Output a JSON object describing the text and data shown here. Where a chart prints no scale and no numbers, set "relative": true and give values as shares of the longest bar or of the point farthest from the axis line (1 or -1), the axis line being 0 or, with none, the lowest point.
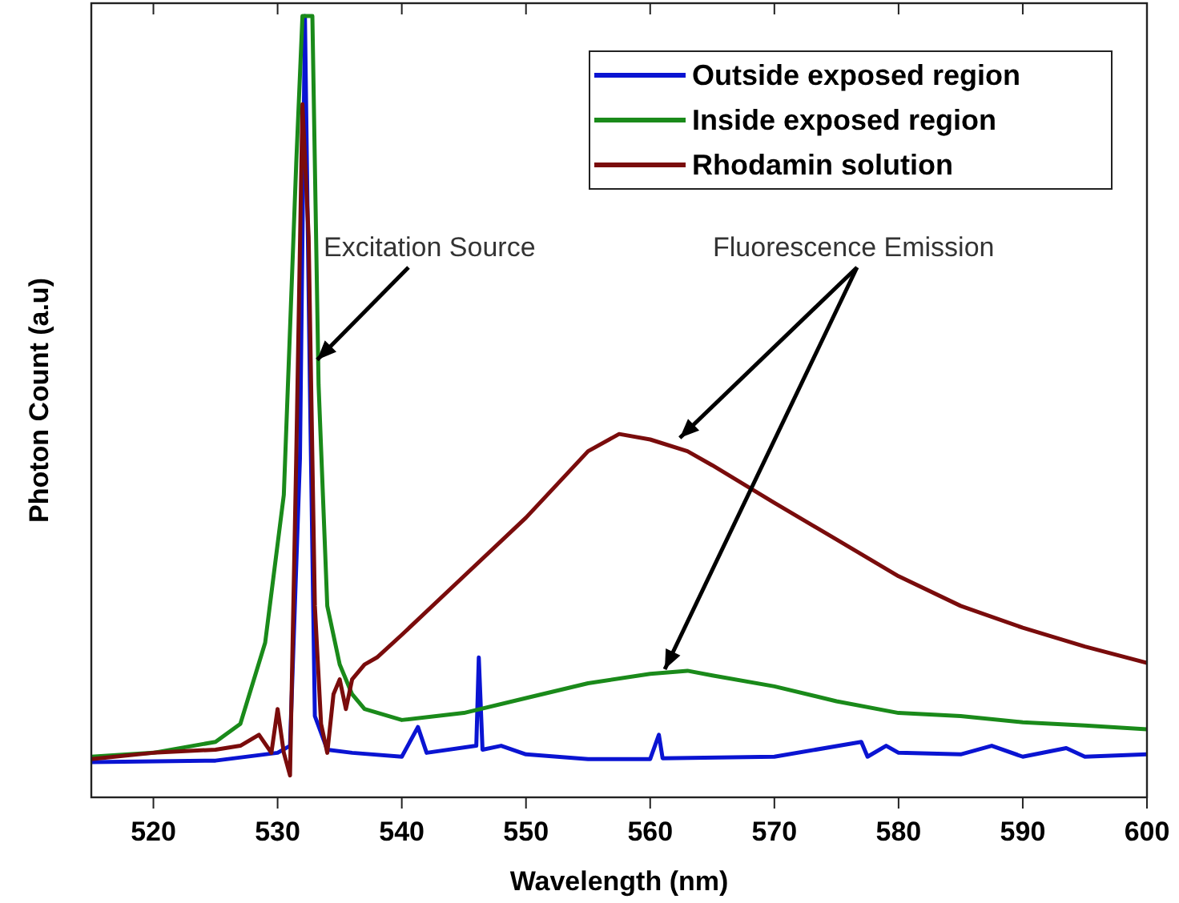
{
  "chart_data": {
    "type": "line",
    "relative": true,
    "xlabel": "Wavelength (nm)",
    "ylabel": "Photon Count (a.u)",
    "xlim": [
      515,
      600
    ],
    "xticks": [
      520,
      530,
      540,
      550,
      560,
      570,
      580,
      590,
      600
    ],
    "legend": "top right",
    "grid": false,
    "line_style": "solid",
    "annotations": [
      {
        "text": "Excitation Source",
        "x": 532.8,
        "y": 0.56
      },
      {
        "text": "Fluorescence Emission",
        "x": 562,
        "y": 0.46
      }
    ],
    "series": [
      {
        "name": "Outside exposed region",
        "color": "#0a14d2",
        "x": [
          515,
          525,
          530,
          531,
          531.8,
          532.2,
          532.6,
          533,
          534,
          536,
          540,
          541.3,
          542,
          546,
          546.2,
          546.5,
          548,
          550,
          555,
          560,
          560.7,
          561,
          570,
          577,
          577.5,
          579,
          580,
          585,
          587.5,
          590,
          593.5,
          595,
          600
        ],
        "values": [
          0.045,
          0.047,
          0.057,
          0.066,
          0.434,
          1,
          0.528,
          0.104,
          0.061,
          0.057,
          0.052,
          0.09,
          0.057,
          0.066,
          0.179,
          0.061,
          0.066,
          0.055,
          0.049,
          0.049,
          0.08,
          0.05,
          0.052,
          0.071,
          0.052,
          0.066,
          0.057,
          0.055,
          0.066,
          0.052,
          0.063,
          0.052,
          0.055
        ]
      },
      {
        "name": "Inside exposed region",
        "color": "#1a8a1a",
        "x": [
          515,
          520,
          525,
          527,
          529,
          530.5,
          531.5,
          532,
          532.8,
          533.3,
          534,
          535,
          536,
          537,
          540,
          545,
          550,
          555,
          560,
          563,
          565,
          570,
          575,
          580,
          585,
          590,
          595,
          600
        ],
        "values": [
          0.052,
          0.057,
          0.071,
          0.094,
          0.198,
          0.387,
          0.811,
          1,
          1,
          0.528,
          0.245,
          0.17,
          0.132,
          0.113,
          0.099,
          0.108,
          0.127,
          0.146,
          0.158,
          0.162,
          0.156,
          0.142,
          0.123,
          0.108,
          0.104,
          0.096,
          0.092,
          0.087
        ]
      },
      {
        "name": "Rhodamin solution",
        "color": "#7a0c0c",
        "x": [
          515,
          520,
          525,
          527,
          528.5,
          529.5,
          530,
          530.5,
          531,
          531.5,
          532,
          532.5,
          533,
          533.5,
          534,
          534.5,
          535,
          535.5,
          536,
          537,
          538,
          540,
          545,
          550,
          555,
          557.5,
          560,
          563,
          565,
          570,
          575,
          580,
          585,
          590,
          595,
          600
        ],
        "values": [
          0.049,
          0.057,
          0.061,
          0.066,
          0.08,
          0.057,
          0.113,
          0.057,
          0.028,
          0.434,
          0.887,
          0.717,
          0.245,
          0.094,
          0.057,
          0.132,
          0.151,
          0.113,
          0.151,
          0.17,
          0.179,
          0.208,
          0.283,
          0.358,
          0.443,
          0.465,
          0.458,
          0.443,
          0.425,
          0.377,
          0.33,
          0.283,
          0.245,
          0.217,
          0.193,
          0.172
        ]
      }
    ]
  }
}
